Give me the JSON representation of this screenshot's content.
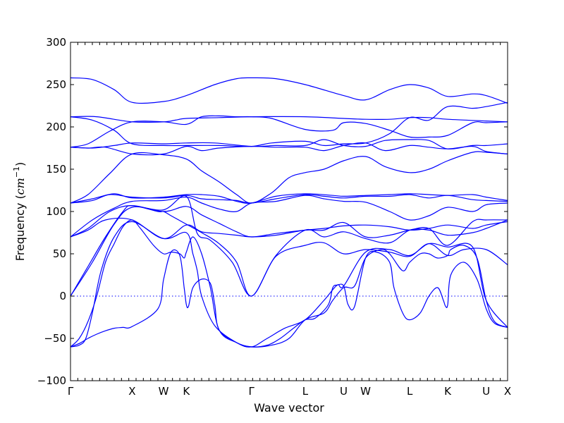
{
  "chart_data": {
    "type": "line",
    "title": "",
    "xlabel": "Wave vector",
    "ylabel_prefix": "Frequency (",
    "ylabel_unit_base": "cm",
    "ylabel_unit_exp": "−1",
    "ylabel_suffix": ")",
    "ylim": [
      -100,
      300
    ],
    "yticks": [
      -100,
      -50,
      0,
      50,
      100,
      150,
      200,
      250,
      300
    ],
    "ytick_labels": [
      "−100",
      "−50",
      "0",
      "50",
      "100",
      "150",
      "200",
      "250",
      "300"
    ],
    "xlim": [
      0,
      1
    ],
    "high_symmetry_points": [
      {
        "label": "Γ",
        "x": 0.0
      },
      {
        "label": "X",
        "x": 0.141
      },
      {
        "label": "W",
        "x": 0.213
      },
      {
        "label": "K",
        "x": 0.265
      },
      {
        "label": "Γ",
        "x": 0.414
      },
      {
        "label": "L",
        "x": 0.537
      },
      {
        "label": "U",
        "x": 0.625
      },
      {
        "label": "W",
        "x": 0.675
      },
      {
        "label": "L",
        "x": 0.776
      },
      {
        "label": "K",
        "x": 0.863
      },
      {
        "label": "U",
        "x": 0.951
      },
      {
        "label": "X",
        "x": 1.0
      }
    ],
    "minor_tick_count": 60,
    "zero_line": true,
    "color": "#0000ff",
    "series": [
      {
        "x": [
          0,
          0.05,
          0.1,
          0.141,
          0.213,
          0.265,
          0.33,
          0.38,
          0.414,
          0.47,
          0.537,
          0.625,
          0.675,
          0.73,
          0.776,
          0.82,
          0.863,
          0.92,
          0.951,
          1.0
        ],
        "y": [
          258,
          256,
          244,
          229,
          230,
          237,
          250,
          257,
          258,
          257,
          250,
          237,
          232,
          244,
          250,
          246,
          236,
          239,
          237,
          228
        ]
      },
      {
        "x": [
          0,
          0.06,
          0.141,
          0.213,
          0.24,
          0.265,
          0.34,
          0.414,
          0.537,
          0.625,
          0.675,
          0.73,
          0.776,
          0.82,
          0.863,
          0.951,
          1.0
        ],
        "y": [
          212,
          212,
          206,
          206,
          208,
          210,
          211,
          212,
          212,
          210,
          209,
          209,
          211,
          211,
          209,
          207,
          206
        ]
      },
      {
        "x": [
          0,
          0.05,
          0.1,
          0.141,
          0.213,
          0.265,
          0.34,
          0.414,
          0.46,
          0.537,
          0.58,
          0.625,
          0.675,
          0.73,
          0.776,
          0.82,
          0.863,
          0.92,
          0.951,
          1.0
        ],
        "y": [
          212,
          208,
          196,
          180,
          178,
          178,
          178,
          177,
          181,
          183,
          178,
          180,
          181,
          192,
          211,
          208,
          224,
          222,
          224,
          229
        ]
      },
      {
        "x": [
          0,
          0.04,
          0.09,
          0.141,
          0.213,
          0.265,
          0.3,
          0.34,
          0.38,
          0.414,
          0.46,
          0.537,
          0.6,
          0.625,
          0.675,
          0.73,
          0.776,
          0.82,
          0.863,
          0.92,
          0.951,
          1.0
        ],
        "y": [
          176,
          180,
          195,
          206,
          206,
          203,
          212,
          213,
          212,
          212,
          210,
          197,
          196,
          205,
          204,
          196,
          188,
          188,
          190,
          205,
          205,
          206
        ]
      },
      {
        "x": [
          0,
          0.05,
          0.1,
          0.141,
          0.213,
          0.265,
          0.33,
          0.414,
          0.47,
          0.537,
          0.58,
          0.625,
          0.675,
          0.72,
          0.776,
          0.82,
          0.863,
          0.92,
          0.951,
          1.0
        ],
        "y": [
          176,
          175,
          178,
          181,
          180,
          181,
          181,
          177,
          178,
          178,
          185,
          178,
          177,
          184,
          185,
          184,
          174,
          178,
          178,
          180
        ]
      },
      {
        "x": [
          0,
          0.04,
          0.08,
          0.141,
          0.213,
          0.265,
          0.3,
          0.34,
          0.414,
          0.47,
          0.537,
          0.58,
          0.625,
          0.675,
          0.72,
          0.776,
          0.82,
          0.863,
          0.92,
          0.951,
          1.0
        ],
        "y": [
          176,
          175,
          176,
          168,
          168,
          177,
          172,
          175,
          177,
          176,
          176,
          172,
          178,
          181,
          172,
          178,
          176,
          174,
          177,
          171,
          168
        ]
      },
      {
        "x": [
          0,
          0.04,
          0.09,
          0.141,
          0.213,
          0.265,
          0.3,
          0.34,
          0.38,
          0.414,
          0.46,
          0.5,
          0.537,
          0.58,
          0.625,
          0.675,
          0.72,
          0.776,
          0.82,
          0.863,
          0.92,
          0.951,
          1.0
        ],
        "y": [
          110,
          120,
          145,
          168,
          167,
          162,
          148,
          135,
          120,
          110,
          122,
          140,
          146,
          150,
          160,
          165,
          153,
          146,
          150,
          160,
          170,
          170,
          168
        ]
      },
      {
        "x": [
          0,
          0.05,
          0.1,
          0.141,
          0.213,
          0.265,
          0.3,
          0.34,
          0.38,
          0.414,
          0.47,
          0.537,
          0.6,
          0.625,
          0.675,
          0.73,
          0.776,
          0.82,
          0.863,
          0.92,
          0.951,
          1.0
        ],
        "y": [
          110,
          115,
          121,
          116,
          117,
          120,
          120,
          118,
          112,
          110,
          118,
          121,
          119,
          118,
          119,
          120,
          121,
          120,
          119,
          120,
          117,
          113
        ]
      },
      {
        "x": [
          0,
          0.05,
          0.09,
          0.141,
          0.213,
          0.265,
          0.3,
          0.34,
          0.38,
          0.414,
          0.47,
          0.537,
          0.58,
          0.625,
          0.675,
          0.73,
          0.776,
          0.82,
          0.863,
          0.92,
          0.951,
          1.0
        ],
        "y": [
          110,
          113,
          120,
          117,
          116,
          119,
          115,
          114,
          113,
          110,
          115,
          120,
          118,
          116,
          118,
          118,
          120,
          116,
          119,
          114,
          113,
          112
        ]
      },
      {
        "x": [
          0,
          0.05,
          0.1,
          0.141,
          0.213,
          0.265,
          0.3,
          0.34,
          0.38,
          0.414,
          0.47,
          0.537,
          0.58,
          0.625,
          0.675,
          0.73,
          0.776,
          0.82,
          0.863,
          0.92,
          0.951,
          1.0
        ],
        "y": [
          70,
          90,
          104,
          112,
          113,
          117,
          110,
          103,
          100,
          110,
          112,
          119,
          115,
          112,
          111,
          100,
          90,
          95,
          105,
          100,
          108,
          110
        ]
      },
      {
        "x": [
          0,
          0.04,
          0.09,
          0.141,
          0.213,
          0.265,
          0.3,
          0.34,
          0.38,
          0.414,
          0.47,
          0.537,
          0.58,
          0.625,
          0.675,
          0.73,
          0.776,
          0.82,
          0.863,
          0.92,
          0.951,
          1.0
        ],
        "y": [
          70,
          80,
          100,
          107,
          100,
          106,
          96,
          86,
          76,
          70,
          74,
          78,
          80,
          83,
          84,
          82,
          78,
          80,
          84,
          80,
          84,
          88
        ]
      },
      {
        "x": [
          0,
          0.04,
          0.08,
          0.141,
          0.213,
          0.265,
          0.3,
          0.34,
          0.38,
          0.414,
          0.47,
          0.537,
          0.58,
          0.625,
          0.675,
          0.73,
          0.776,
          0.82,
          0.863,
          0.92,
          0.951,
          1.0
        ],
        "y": [
          70,
          78,
          90,
          90,
          68,
          84,
          76,
          74,
          72,
          70,
          72,
          78,
          78,
          87,
          70,
          72,
          78,
          80,
          60,
          88,
          90,
          90
        ]
      },
      {
        "x": [
          0,
          0.04,
          0.08,
          0.12,
          0.141,
          0.2,
          0.213,
          0.23,
          0.265,
          0.3,
          0.34,
          0.38,
          0.414,
          0.47,
          0.537,
          0.58,
          0.625,
          0.675,
          0.73,
          0.776,
          0.82,
          0.863,
          0.92,
          0.951,
          1.0
        ],
        "y": [
          0,
          35,
          70,
          100,
          107,
          100,
          100,
          95,
          85,
          75,
          62,
          40,
          0,
          48,
          78,
          70,
          76,
          68,
          63,
          78,
          78,
          72,
          75,
          80,
          90
        ]
      },
      {
        "x": [
          0,
          0.05,
          0.1,
          0.141,
          0.213,
          0.265,
          0.29,
          0.32,
          0.37,
          0.414,
          0.47,
          0.537,
          0.58,
          0.625,
          0.675,
          0.73,
          0.776,
          0.82,
          0.863,
          0.9,
          0.951,
          1.0
        ],
        "y": [
          0,
          40,
          85,
          105,
          102,
          118,
          74,
          66,
          40,
          0,
          47,
          60,
          63,
          50,
          55,
          52,
          47,
          62,
          48,
          55,
          55,
          37
        ]
      },
      {
        "x": [
          0,
          0.02,
          0.04,
          0.06,
          0.08,
          0.1,
          0.12,
          0.141,
          0.2,
          0.213,
          0.23,
          0.25,
          0.26,
          0.265,
          0.27,
          0.28,
          0.3,
          0.32,
          0.33,
          0.34,
          0.38,
          0.414,
          0.45,
          0.48,
          0.51,
          0.537,
          0.56,
          0.59,
          0.6,
          0.61,
          0.625,
          0.635,
          0.65,
          0.675,
          0.7,
          0.73,
          0.74,
          0.76,
          0.776,
          0.8,
          0.82,
          0.84,
          0.853,
          0.858,
          0.863,
          0.87,
          0.9,
          0.93,
          0.951,
          0.97,
          1.0
        ],
        "y": [
          -60,
          -56,
          -50,
          -45,
          -41,
          -38,
          -37,
          -36,
          -15,
          20,
          52,
          48,
          10,
          -10,
          -12,
          10,
          20,
          15,
          -10,
          -40,
          -55,
          -60,
          -58,
          -50,
          -38,
          -28,
          -26,
          -10,
          10,
          13,
          12,
          -10,
          -12,
          45,
          52,
          40,
          10,
          -20,
          -28,
          -20,
          0,
          10,
          -5,
          -12,
          -10,
          25,
          40,
          20,
          -15,
          -32,
          -37
        ]
      },
      {
        "x": [
          0,
          0.02,
          0.04,
          0.06,
          0.08,
          0.1,
          0.12,
          0.141,
          0.16,
          0.19,
          0.213,
          0.23,
          0.25,
          0.26,
          0.265,
          0.28,
          0.3,
          0.32,
          0.34,
          0.38,
          0.414,
          0.46,
          0.5,
          0.537,
          0.58,
          0.6,
          0.625,
          0.65,
          0.675,
          0.71,
          0.73,
          0.76,
          0.776,
          0.8,
          0.82,
          0.84,
          0.863,
          0.87,
          0.9,
          0.93,
          0.951,
          0.97,
          1.0
        ],
        "y": [
          -60,
          -50,
          -30,
          0,
          40,
          62,
          82,
          90,
          80,
          60,
          50,
          52,
          50,
          45,
          52,
          70,
          50,
          10,
          -40,
          -55,
          -60,
          -58,
          -50,
          -28,
          -20,
          -5,
          10,
          12,
          45,
          55,
          50,
          30,
          40,
          50,
          50,
          45,
          48,
          55,
          60,
          45,
          -5,
          -30,
          -37
        ]
      },
      {
        "x": [
          0,
          0.02,
          0.035,
          0.05,
          0.07,
          0.1,
          0.141,
          0.213,
          0.265,
          0.28,
          0.29,
          0.3,
          0.33,
          0.38,
          0.414,
          0.45,
          0.49,
          0.537,
          0.58,
          0.61,
          0.625,
          0.675,
          0.73,
          0.776,
          0.82,
          0.863,
          0.92,
          0.951,
          1.0
        ],
        "y": [
          -60,
          -58,
          -50,
          -20,
          30,
          70,
          88,
          68,
          75,
          50,
          30,
          0,
          -35,
          -55,
          -60,
          -50,
          -38,
          -28,
          -5,
          13,
          12,
          52,
          55,
          48,
          62,
          58,
          58,
          -5,
          -37
        ]
      }
    ]
  }
}
